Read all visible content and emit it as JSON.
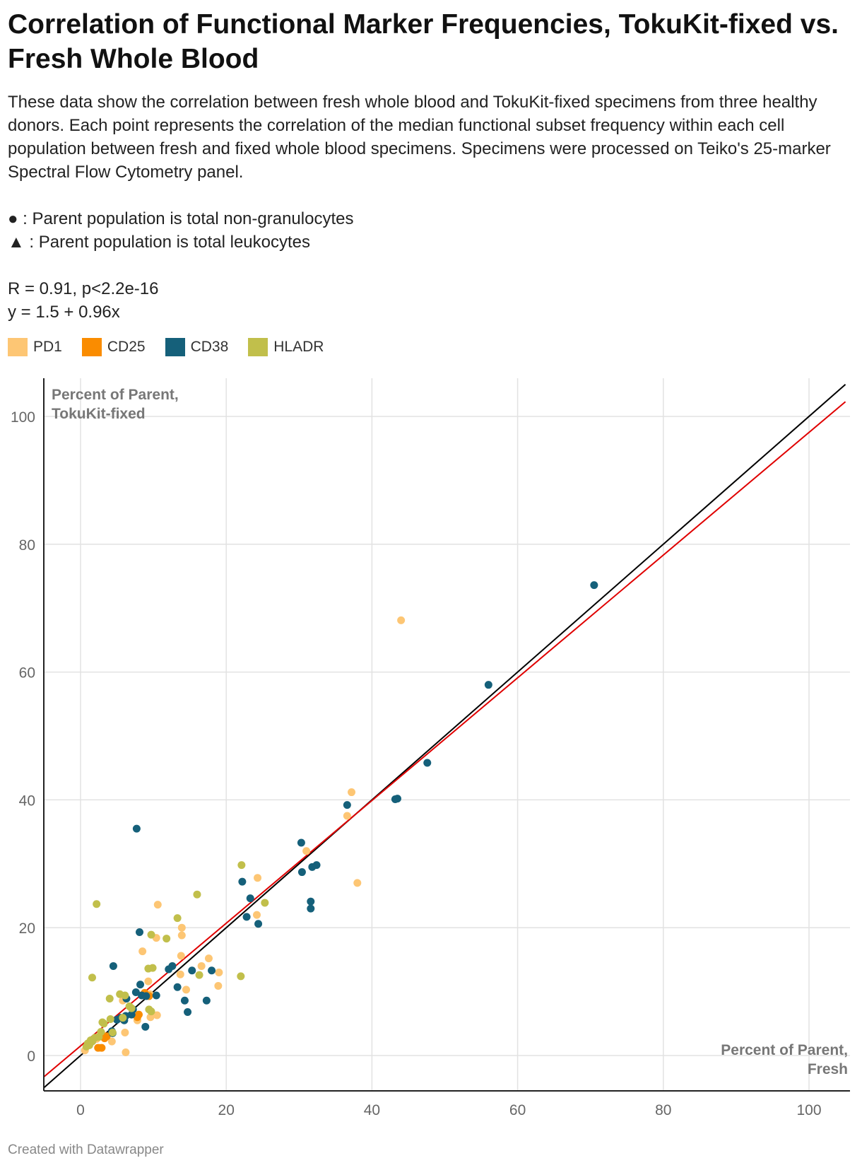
{
  "title": "Correlation of Functional Marker Frequencies, TokuKit-fixed vs. Fresh Whole Blood",
  "description": "These data show the correlation between fresh whole blood and TokuKit-fixed specimens from three healthy donors. Each point represents the correlation of the median functional subset frequency within each cell population between fresh and fixed whole blood specimens. Specimens were processed on Teiko's 25-marker Spectral Flow Cytometry panel.",
  "notes": [
    {
      "symbol": "●",
      "text": " : Parent population is total non-granulocytes"
    },
    {
      "symbol": "▲",
      "text": " : Parent population is total leukocytes"
    }
  ],
  "stats": {
    "r_line": "R = 0.91, p<2.2e-16",
    "fit_line": "y = 1.5 + 0.96x"
  },
  "footer": "Created with Datawrapper",
  "colors": {
    "PD1": "#fdc674",
    "CD25": "#fa8c00",
    "CD38": "#15607a",
    "HLADR": "#c1bf4b",
    "fit": "#e00000",
    "identity": "#000000"
  },
  "chart_data": {
    "type": "scatter",
    "title": "Correlation of Functional Marker Frequencies, TokuKit-fixed vs. Fresh Whole Blood",
    "xlabel": "Percent of Parent, Fresh",
    "ylabel": "Percent of Parent, TokuKit-fixed",
    "ylabel_line1": "Percent of Parent,",
    "ylabel_line2": "TokuKit-fixed",
    "xlabel_line1": "Percent of Parent,",
    "xlabel_line2": "Fresh",
    "xlim": [
      -5,
      105
    ],
    "ylim": [
      -5,
      105
    ],
    "xticks": [
      0,
      20,
      40,
      60,
      80,
      100
    ],
    "yticks": [
      0,
      20,
      40,
      60,
      80,
      100
    ],
    "grid": true,
    "legend": "top-left",
    "fit_line": {
      "intercept": 1.5,
      "slope": 0.96,
      "label": "y = 1.5 + 0.96x"
    },
    "identity_line": {
      "intercept": 0,
      "slope": 1
    },
    "series": [
      {
        "name": "PD1",
        "color": "#fdc674",
        "points": [
          [
            44.0,
            68.1
          ],
          [
            37.2,
            41.2
          ],
          [
            36.6,
            37.5
          ],
          [
            38.0,
            27.0
          ],
          [
            31.0,
            32.0
          ],
          [
            24.3,
            27.8
          ],
          [
            24.2,
            22.0
          ],
          [
            10.6,
            23.6
          ],
          [
            13.9,
            20.0
          ],
          [
            13.9,
            18.8
          ],
          [
            10.4,
            18.4
          ],
          [
            8.5,
            16.3
          ],
          [
            13.8,
            15.6
          ],
          [
            17.6,
            15.2
          ],
          [
            16.6,
            14.0
          ],
          [
            19.0,
            13.0
          ],
          [
            13.7,
            12.7
          ],
          [
            9.3,
            11.6
          ],
          [
            18.9,
            10.9
          ],
          [
            14.5,
            10.3
          ],
          [
            9.5,
            9.6
          ],
          [
            10.5,
            6.3
          ],
          [
            9.6,
            6.0
          ],
          [
            6.1,
            3.6
          ],
          [
            4.3,
            2.2
          ],
          [
            2.6,
            1.2
          ],
          [
            6.2,
            0.5
          ],
          [
            2.2,
            2.6
          ],
          [
            0.6,
            0.8
          ],
          [
            7.8,
            5.5
          ],
          [
            5.8,
            8.6
          ],
          [
            3.0,
            3.3
          ]
        ]
      },
      {
        "name": "CD25",
        "color": "#fa8c00",
        "points": [
          [
            2.4,
            1.2
          ],
          [
            2.9,
            1.2
          ],
          [
            3.3,
            2.7
          ],
          [
            7.8,
            6.0
          ],
          [
            8.0,
            6.4
          ],
          [
            9.4,
            9.3
          ],
          [
            5.9,
            5.6
          ],
          [
            3.6,
            3.0
          ],
          [
            8.8,
            9.8
          ]
        ]
      },
      {
        "name": "CD38",
        "color": "#15607a",
        "points": [
          [
            70.5,
            73.6
          ],
          [
            56.0,
            58.0
          ],
          [
            47.6,
            45.8
          ],
          [
            43.5,
            40.2
          ],
          [
            43.2,
            40.1
          ],
          [
            36.6,
            39.2
          ],
          [
            30.3,
            33.3
          ],
          [
            31.8,
            29.5
          ],
          [
            32.4,
            29.8
          ],
          [
            30.4,
            28.7
          ],
          [
            22.2,
            27.2
          ],
          [
            23.3,
            24.6
          ],
          [
            31.6,
            24.1
          ],
          [
            31.6,
            23.0
          ],
          [
            22.8,
            21.7
          ],
          [
            24.4,
            20.6
          ],
          [
            7.7,
            35.5
          ],
          [
            8.1,
            19.3
          ],
          [
            4.5,
            14.0
          ],
          [
            12.1,
            13.5
          ],
          [
            12.6,
            14.0
          ],
          [
            15.3,
            13.3
          ],
          [
            18.0,
            13.3
          ],
          [
            8.2,
            11.1
          ],
          [
            13.3,
            10.7
          ],
          [
            7.6,
            9.9
          ],
          [
            8.4,
            9.4
          ],
          [
            10.4,
            9.4
          ],
          [
            9.0,
            9.3
          ],
          [
            6.3,
            8.9
          ],
          [
            14.3,
            8.6
          ],
          [
            17.3,
            8.6
          ],
          [
            7.2,
            7.2
          ],
          [
            14.7,
            6.8
          ],
          [
            7.0,
            6.4
          ],
          [
            6.0,
            5.5
          ],
          [
            5.0,
            5.6
          ],
          [
            8.9,
            4.5
          ],
          [
            4.3,
            3.8
          ],
          [
            4.4,
            3.5
          ],
          [
            6.2,
            6.2
          ],
          [
            5.5,
            5.9
          ]
        ]
      },
      {
        "name": "HLADR",
        "color": "#c1bf4b",
        "points": [
          [
            22.1,
            29.8
          ],
          [
            16.0,
            25.2
          ],
          [
            25.3,
            23.9
          ],
          [
            2.2,
            23.7
          ],
          [
            13.3,
            21.5
          ],
          [
            9.7,
            18.9
          ],
          [
            11.8,
            18.3
          ],
          [
            9.3,
            13.6
          ],
          [
            9.9,
            13.7
          ],
          [
            1.6,
            12.2
          ],
          [
            16.3,
            12.6
          ],
          [
            22.0,
            12.4
          ],
          [
            5.4,
            9.6
          ],
          [
            6.1,
            9.4
          ],
          [
            4.0,
            8.9
          ],
          [
            6.7,
            7.7
          ],
          [
            7.0,
            7.4
          ],
          [
            9.4,
            7.2
          ],
          [
            9.7,
            6.9
          ],
          [
            4.1,
            5.7
          ],
          [
            3.0,
            5.2
          ],
          [
            3.2,
            5.0
          ],
          [
            4.4,
            3.6
          ],
          [
            2.0,
            2.8
          ],
          [
            2.5,
            2.9
          ],
          [
            1.4,
            2.4
          ],
          [
            1.0,
            1.9
          ],
          [
            0.8,
            1.4
          ],
          [
            1.2,
            1.6
          ],
          [
            1.6,
            2.2
          ],
          [
            5.8,
            5.9
          ],
          [
            2.8,
            3.7
          ]
        ]
      }
    ]
  }
}
